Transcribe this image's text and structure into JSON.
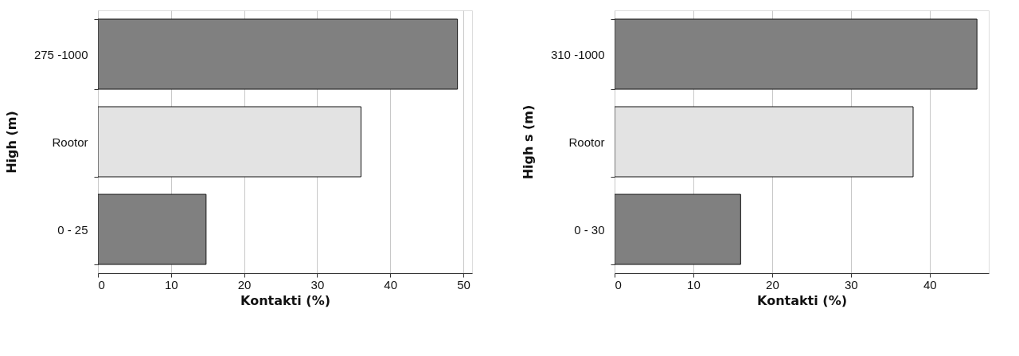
{
  "chart_data": [
    {
      "type": "bar",
      "orientation": "horizontal",
      "categories": [
        "275 -1000",
        "Rootor",
        "0 - 25"
      ],
      "values": [
        49.2,
        36.0,
        14.8
      ],
      "colors": [
        "#808080",
        "#e3e3e3",
        "#808080"
      ],
      "xlabel": "Kontakti (%)",
      "ylabel": "High (m)",
      "xlim": [
        0,
        51.2
      ],
      "xticks": [
        0,
        10,
        20,
        30,
        40,
        50
      ],
      "grid": "x"
    },
    {
      "type": "bar",
      "orientation": "horizontal",
      "categories": [
        "310 -1000",
        "Rootor",
        "0 - 30"
      ],
      "values": [
        46.0,
        37.9,
        16.0
      ],
      "colors": [
        "#808080",
        "#e3e3e3",
        "#808080"
      ],
      "xlabel": "Kontakti (%)",
      "ylabel": "High s (m)",
      "xlim": [
        0,
        47.5
      ],
      "xticks": [
        0,
        10,
        20,
        30,
        40
      ],
      "grid": "x"
    }
  ]
}
